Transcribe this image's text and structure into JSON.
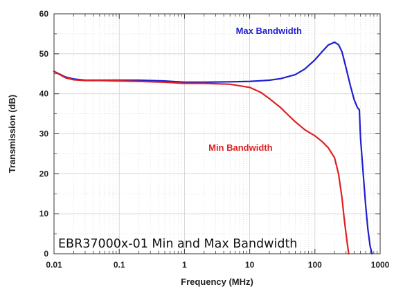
{
  "colors": {
    "max_series": "#1f1fd0",
    "min_series": "#e02020",
    "grid": "#cfcfcf",
    "axis": "#333333"
  },
  "caption": "EBR37000x-01 Min and Max Bandwidth",
  "chart_data": {
    "type": "line",
    "title": "",
    "xlabel": "Frequency (MHz)",
    "ylabel": "Transmission (dB)",
    "xscale": "log",
    "xlim": [
      0.01,
      1000
    ],
    "ylim": [
      0,
      60
    ],
    "grid": true,
    "x_ticks": [
      0.01,
      0.1,
      1,
      10,
      100,
      1000
    ],
    "x_tick_labels": [
      "0.01",
      "0.1",
      "1",
      "10",
      "100",
      "1000"
    ],
    "y_ticks": [
      0,
      10,
      20,
      30,
      40,
      50,
      60
    ],
    "y_tick_labels": [
      "0",
      "10",
      "20",
      "30",
      "40",
      "50",
      "60"
    ],
    "series": [
      {
        "name": "Max Bandwidth",
        "color": "#1f1fd0",
        "label_position": "upper-right",
        "x": [
          0.01,
          0.015,
          0.02,
          0.03,
          0.05,
          0.1,
          0.2,
          0.5,
          1,
          2,
          5,
          10,
          20,
          30,
          50,
          70,
          100,
          130,
          160,
          200,
          230,
          260,
          300,
          350,
          400,
          450,
          480,
          500,
          550,
          600,
          650,
          700,
          750
        ],
        "y": [
          45.6,
          44.2,
          43.7,
          43.4,
          43.4,
          43.4,
          43.4,
          43.2,
          42.9,
          42.9,
          43.0,
          43.1,
          43.4,
          43.8,
          44.8,
          46.2,
          48.5,
          50.6,
          52.2,
          52.9,
          52.3,
          50.5,
          46.5,
          42.0,
          38.5,
          36.5,
          36.0,
          29.0,
          20.0,
          12.0,
          6.0,
          2.0,
          0.0
        ]
      },
      {
        "name": "Min Bandwidth",
        "color": "#e02020",
        "label_position": "center-right",
        "x": [
          0.01,
          0.015,
          0.02,
          0.03,
          0.05,
          0.1,
          0.2,
          0.5,
          1,
          2,
          5,
          10,
          15,
          20,
          30,
          40,
          50,
          70,
          100,
          130,
          160,
          200,
          230,
          260,
          280,
          300,
          320,
          330
        ],
        "y": [
          45.6,
          44.0,
          43.5,
          43.3,
          43.3,
          43.2,
          43.1,
          42.9,
          42.6,
          42.6,
          42.4,
          41.6,
          40.3,
          38.8,
          36.5,
          34.5,
          33.0,
          31.0,
          29.5,
          28.0,
          26.5,
          24.0,
          20.0,
          14.0,
          9.0,
          5.0,
          1.5,
          0.0
        ]
      }
    ]
  }
}
